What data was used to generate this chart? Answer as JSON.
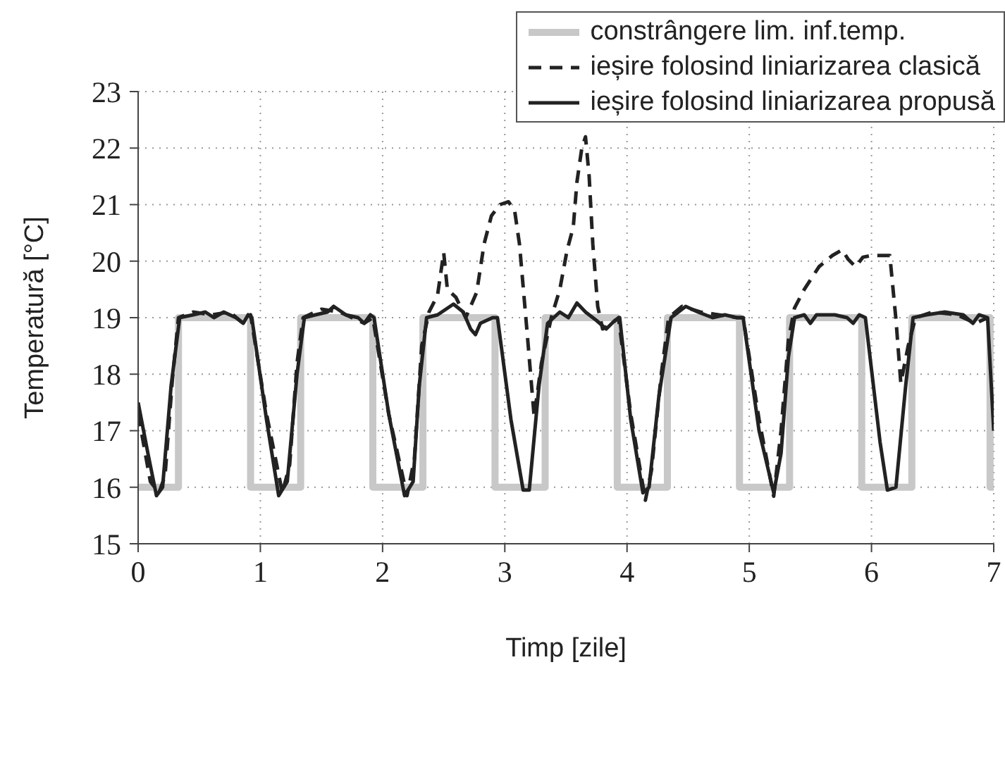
{
  "chart_data": {
    "type": "line",
    "xlabel": "Timp [zile]",
    "ylabel": "Temperatură [°C]",
    "xlim": [
      0,
      7
    ],
    "xticks": [
      0,
      1,
      2,
      3,
      4,
      5,
      6,
      7
    ],
    "ylim": [
      15,
      23
    ],
    "yticks": [
      15,
      16,
      17,
      18,
      19,
      20,
      21,
      22,
      23
    ],
    "grid": true,
    "legend": "top right",
    "marker": "none",
    "series": [
      {
        "name": "constrângere lim. inf.temp.",
        "type": "step",
        "color": "#c8c8c8",
        "line_style": "solid",
        "x": [
          0,
          0.33,
          0.92,
          1.33,
          1.92,
          2.33,
          2.92,
          3.33,
          3.92,
          4.33,
          4.92,
          5.33,
          5.92,
          6.33,
          6.97,
          7
        ],
        "values": [
          16,
          19,
          16,
          19,
          16,
          19,
          16,
          19,
          16,
          19,
          16,
          19,
          16,
          19,
          16,
          16
        ]
      },
      {
        "name": "ieșire folosind liniarizarea clasică",
        "color": "#222222",
        "line_style": "dashed",
        "x": [
          0,
          0.1,
          0.17,
          0.22,
          0.28,
          0.33,
          0.45,
          0.6,
          0.75,
          0.86,
          0.92,
          1.05,
          1.18,
          1.24,
          1.3,
          1.35,
          1.5,
          1.65,
          1.85,
          1.92,
          2.05,
          2.2,
          2.26,
          2.32,
          2.38,
          2.45,
          2.5,
          2.53,
          2.6,
          2.68,
          2.77,
          2.83,
          2.89,
          2.96,
          3.03,
          3.08,
          3.12,
          3.18,
          3.24,
          3.3,
          3.38,
          3.45,
          3.51,
          3.56,
          3.59,
          3.63,
          3.66,
          3.69,
          3.72,
          3.76,
          3.8,
          3.88,
          3.93,
          4.03,
          4.15,
          4.2,
          4.28,
          4.34,
          4.45,
          4.6,
          4.75,
          4.9,
          4.95,
          5.08,
          5.2,
          5.26,
          5.32,
          5.37,
          5.45,
          5.57,
          5.68,
          5.76,
          5.81,
          5.87,
          5.93,
          6.0,
          6.15,
          6.2,
          6.24,
          6.3,
          6.36,
          6.5,
          6.7,
          6.85,
          6.95
        ],
        "values": [
          17.3,
          16.1,
          15.9,
          16.2,
          17.9,
          19.0,
          19.1,
          19.05,
          19.1,
          18.9,
          19.05,
          17.3,
          15.9,
          16.4,
          18.2,
          19.0,
          19.15,
          19.1,
          18.9,
          19.0,
          17.3,
          15.85,
          16.5,
          18.5,
          19.1,
          19.4,
          20.15,
          19.5,
          19.36,
          19.0,
          19.45,
          20.3,
          20.8,
          21.0,
          21.05,
          20.9,
          20.3,
          18.8,
          17.25,
          18.2,
          19.0,
          19.5,
          20.2,
          20.6,
          21.4,
          22.0,
          22.2,
          21.5,
          20.3,
          19.2,
          18.8,
          18.9,
          19.0,
          17.3,
          15.77,
          16.3,
          18.0,
          19.0,
          19.2,
          19.1,
          19.05,
          19.0,
          19.0,
          17.2,
          15.84,
          17.0,
          18.6,
          19.17,
          19.5,
          19.9,
          20.1,
          20.2,
          20.03,
          19.9,
          20.07,
          20.1,
          20.1,
          18.97,
          17.84,
          18.5,
          19.0,
          19.1,
          19.05,
          18.9,
          19.0
        ]
      },
      {
        "name": "ieșire folosind liniarizarea propusă",
        "color": "#222222",
        "line_style": "solid",
        "x": [
          0,
          0.08,
          0.15,
          0.2,
          0.27,
          0.34,
          0.45,
          0.55,
          0.62,
          0.7,
          0.8,
          0.86,
          0.9,
          0.93,
          1.05,
          1.15,
          1.22,
          1.3,
          1.36,
          1.45,
          1.55,
          1.6,
          1.7,
          1.8,
          1.85,
          1.9,
          1.93,
          2.05,
          2.18,
          2.25,
          2.3,
          2.36,
          2.45,
          2.58,
          2.66,
          2.72,
          2.76,
          2.8,
          2.9,
          2.94,
          3.05,
          3.15,
          3.2,
          3.28,
          3.35,
          3.45,
          3.52,
          3.59,
          3.66,
          3.75,
          3.83,
          3.9,
          3.94,
          4.03,
          4.13,
          4.18,
          4.26,
          4.36,
          4.48,
          4.58,
          4.7,
          4.8,
          4.9,
          4.95,
          5.08,
          5.2,
          5.26,
          5.32,
          5.37,
          5.45,
          5.5,
          5.55,
          5.7,
          5.8,
          5.85,
          5.9,
          5.95,
          6.07,
          6.13,
          6.2,
          6.28,
          6.34,
          6.45,
          6.6,
          6.75,
          6.83,
          6.88,
          6.95,
          7
        ],
        "values": [
          17.5,
          16.6,
          15.85,
          16.0,
          17.8,
          19.0,
          19.05,
          19.1,
          19.0,
          19.1,
          19.0,
          18.9,
          19.05,
          19.0,
          17.2,
          15.85,
          16.1,
          18.0,
          19.0,
          19.05,
          19.1,
          19.2,
          19.05,
          19.0,
          18.9,
          19.05,
          19.0,
          17.3,
          15.85,
          16.1,
          17.8,
          19.0,
          19.05,
          19.24,
          19.1,
          18.8,
          18.7,
          18.9,
          19.0,
          19.0,
          17.2,
          15.95,
          15.95,
          17.8,
          18.9,
          19.1,
          19.0,
          19.26,
          19.1,
          18.95,
          18.8,
          18.95,
          19.0,
          17.2,
          15.9,
          16.0,
          17.6,
          19.0,
          19.2,
          19.1,
          19.0,
          19.05,
          19.0,
          19.0,
          17.0,
          15.9,
          16.6,
          18.3,
          19.0,
          19.05,
          18.9,
          19.05,
          19.05,
          19.0,
          18.9,
          19.05,
          19.0,
          16.8,
          15.95,
          16.0,
          17.8,
          19.0,
          19.05,
          19.1,
          19.05,
          18.9,
          19.05,
          19.0,
          17.0
        ]
      }
    ]
  }
}
